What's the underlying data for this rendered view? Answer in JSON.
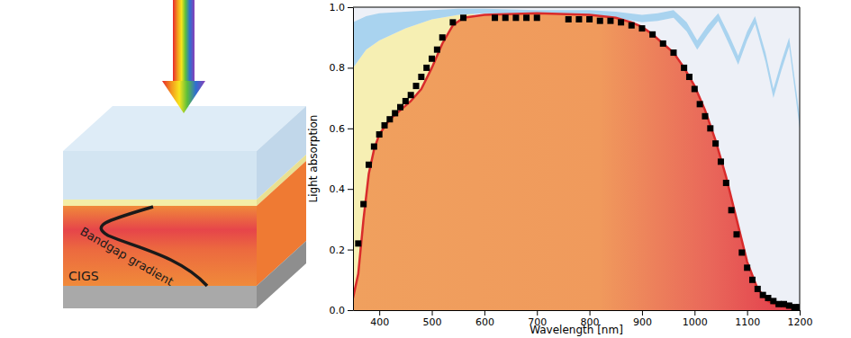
{
  "diagram": {
    "layer_label": "CIGS",
    "gradient_label": "Bandgap gradient"
  },
  "chart_data": {
    "type": "line",
    "xlabel": "Wavelength [nm]",
    "ylabel": "Light absorption",
    "xlim": [
      350,
      1200
    ],
    "ylim": [
      0,
      1
    ],
    "xticks": [
      400,
      500,
      600,
      700,
      800,
      900,
      1000,
      1100,
      1200
    ],
    "yticks": [
      {
        "value": 0,
        "label": "0.0"
      },
      0.2,
      0.4,
      0.6,
      0.8,
      {
        "value": 1,
        "label": "1.0"
      }
    ],
    "series": [
      {
        "type": "area",
        "color": "#f6efb3",
        "x": [
          350,
          375,
          400,
          450,
          500,
          550,
          580
        ],
        "values": [
          0.8,
          0.86,
          0.89,
          0.93,
          0.96,
          0.975,
          0.98
        ]
      },
      {
        "type": "area",
        "color": "#a9d3ef",
        "x": [
          350,
          375,
          400,
          450,
          500,
          550,
          600,
          700,
          800,
          850,
          900,
          930,
          960,
          985,
          1005,
          1025,
          1045,
          1065,
          1083,
          1100,
          1115,
          1135,
          1150,
          1165,
          1180,
          1200
        ],
        "values": [
          0.95,
          0.97,
          0.98,
          0.985,
          0.99,
          0.995,
          0.995,
          0.99,
          0.99,
          0.985,
          0.975,
          0.98,
          0.99,
          0.95,
          0.89,
          0.94,
          0.98,
          0.91,
          0.84,
          0.92,
          0.97,
          0.85,
          0.73,
          0.82,
          0.9,
          0.64
        ],
        "lower": [
          0.8,
          0.86,
          0.89,
          0.93,
          0.96,
          0.975,
          0.98,
          0.975,
          0.97,
          0.965,
          0.95,
          0.955,
          0.965,
          0.92,
          0.86,
          0.91,
          0.955,
          0.88,
          0.81,
          0.89,
          0.945,
          0.82,
          0.7,
          0.79,
          0.87,
          0.6
        ]
      },
      {
        "type": "line",
        "color": "#d92b2b",
        "line_style": "solid",
        "x": [
          350,
          360,
          370,
          380,
          390,
          400,
          420,
          440,
          460,
          480,
          500,
          520,
          540,
          560,
          600,
          700,
          800,
          850,
          880,
          900,
          920,
          940,
          960,
          980,
          1000,
          1020,
          1040,
          1060,
          1080,
          1100,
          1120,
          1140,
          1160,
          1180,
          1200
        ],
        "values": [
          0.04,
          0.12,
          0.3,
          0.45,
          0.53,
          0.58,
          0.63,
          0.66,
          0.69,
          0.73,
          0.8,
          0.88,
          0.94,
          0.965,
          0.975,
          0.98,
          0.975,
          0.965,
          0.95,
          0.935,
          0.91,
          0.88,
          0.85,
          0.8,
          0.74,
          0.66,
          0.56,
          0.44,
          0.3,
          0.16,
          0.07,
          0.03,
          0.015,
          0.008,
          0.005
        ]
      },
      {
        "type": "scatter",
        "color": "#000000",
        "marker": "square",
        "x": [
          360,
          370,
          380,
          390,
          400,
          410,
          420,
          430,
          440,
          450,
          460,
          470,
          480,
          490,
          500,
          510,
          520,
          540,
          560,
          620,
          640,
          660,
          680,
          700,
          760,
          780,
          800,
          820,
          840,
          860,
          880,
          900,
          920,
          940,
          960,
          980,
          990,
          1000,
          1010,
          1020,
          1030,
          1040,
          1050,
          1060,
          1070,
          1080,
          1090,
          1100,
          1110,
          1120,
          1130,
          1140,
          1150,
          1160,
          1170,
          1180,
          1190,
          1200
        ],
        "values": [
          0.22,
          0.35,
          0.48,
          0.54,
          0.58,
          0.61,
          0.63,
          0.65,
          0.67,
          0.69,
          0.71,
          0.74,
          0.77,
          0.8,
          0.83,
          0.86,
          0.9,
          0.95,
          0.965,
          0.965,
          0.965,
          0.965,
          0.965,
          0.965,
          0.96,
          0.96,
          0.96,
          0.955,
          0.955,
          0.95,
          0.94,
          0.93,
          0.91,
          0.88,
          0.85,
          0.8,
          0.77,
          0.73,
          0.68,
          0.64,
          0.6,
          0.55,
          0.49,
          0.42,
          0.33,
          0.25,
          0.19,
          0.14,
          0.1,
          0.07,
          0.05,
          0.04,
          0.03,
          0.02,
          0.02,
          0.015,
          0.01,
          0.01
        ]
      }
    ]
  }
}
